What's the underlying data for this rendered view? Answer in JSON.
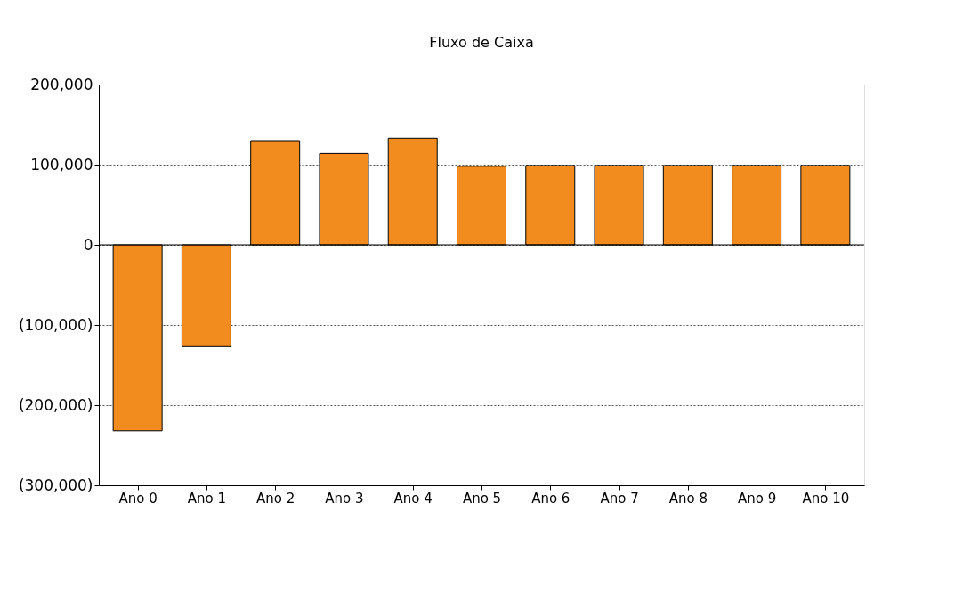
{
  "chart_data": {
    "type": "bar",
    "title": "Fluxo de Caixa",
    "categories": [
      "Ano 0",
      "Ano 1",
      "Ano 2",
      "Ano 3",
      "Ano 4",
      "Ano 5",
      "Ano 6",
      "Ano 7",
      "Ano 8",
      "Ano 9",
      "Ano 10"
    ],
    "values": [
      -232000,
      -127000,
      130000,
      114000,
      133000,
      98000,
      99000,
      99000,
      99000,
      99000,
      99000
    ],
    "color": "#f28c1e",
    "ylim": [
      -300000,
      200000
    ],
    "yticks": [
      {
        "value": -300000,
        "label": "(300,000)"
      },
      {
        "value": -200000,
        "label": "(200,000)"
      },
      {
        "value": -100000,
        "label": "(100,000)"
      },
      {
        "value": 0,
        "label": "0"
      },
      {
        "value": 100000,
        "label": "100,000"
      },
      {
        "value": 200000,
        "label": "200,000"
      }
    ],
    "grid": "y"
  }
}
